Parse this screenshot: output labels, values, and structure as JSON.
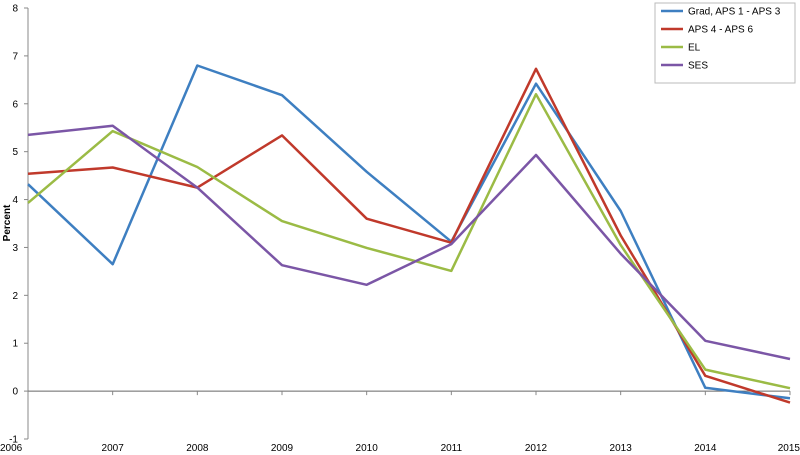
{
  "chart_data": {
    "type": "line",
    "title": "",
    "xlabel": "",
    "ylabel": "Percent",
    "x": [
      "2006",
      "2007",
      "2008",
      "2009",
      "2010",
      "2011",
      "2012",
      "2013",
      "2014",
      "2015"
    ],
    "ylim": [
      -1,
      8
    ],
    "yticks": [
      "-1",
      "0",
      "1",
      "2",
      "3",
      "4",
      "5",
      "6",
      "7",
      "8"
    ],
    "grid": false,
    "legend": "top-right",
    "series": [
      {
        "name": "Grad, APS 1 - APS 3",
        "color": "#3e7fc1",
        "values": [
          4.32,
          2.65,
          6.8,
          6.18,
          4.58,
          3.12,
          6.42,
          3.76,
          0.07,
          -0.15
        ]
      },
      {
        "name": "APS 4 - APS 6",
        "color": "#c0392b",
        "values": [
          4.54,
          4.67,
          4.25,
          5.34,
          3.6,
          3.1,
          6.73,
          3.25,
          0.32,
          -0.24
        ]
      },
      {
        "name": "EL",
        "color": "#9bbb45",
        "values": [
          3.93,
          5.43,
          4.68,
          3.55,
          2.99,
          2.51,
          6.2,
          3.05,
          0.45,
          0.06
        ]
      },
      {
        "name": "SES",
        "color": "#7b56a6",
        "values": [
          5.35,
          5.54,
          4.25,
          2.63,
          2.22,
          3.07,
          4.93,
          2.87,
          1.05,
          0.67
        ]
      }
    ]
  }
}
